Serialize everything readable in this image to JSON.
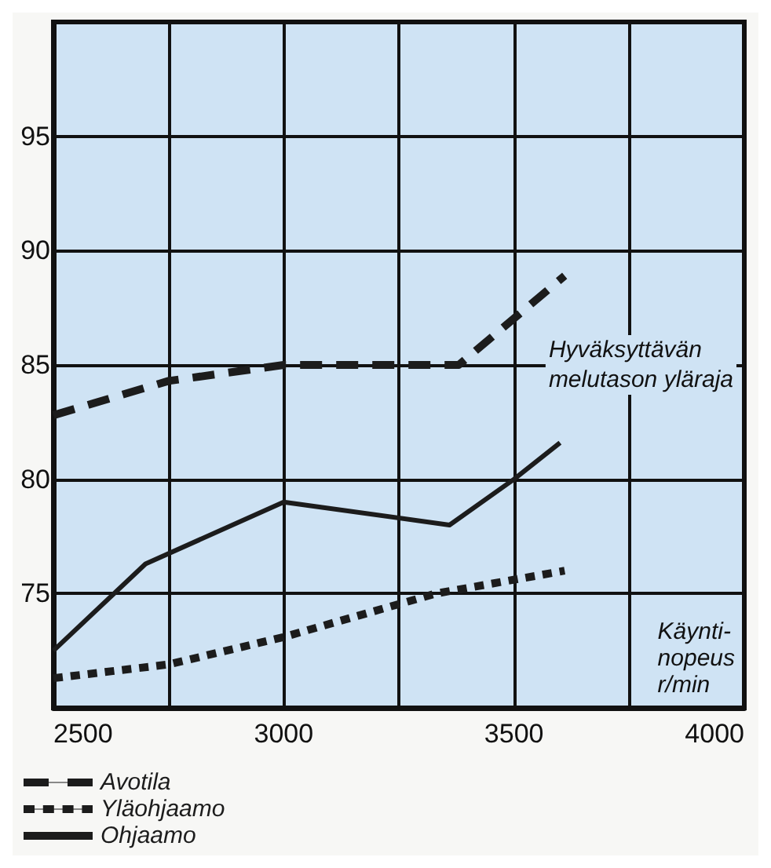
{
  "chart_data": {
    "type": "line",
    "xlabel": "Käynti-\nnopeus\nr/min",
    "xlim": [
      2500,
      4000
    ],
    "xticks": [
      2500,
      {
        "value": 2750,
        "label": null
      },
      3000,
      {
        "value": 3250,
        "label": null
      },
      3500,
      {
        "value": 3750,
        "label": null
      },
      4000
    ],
    "ylim": [
      70,
      100
    ],
    "yticks": [
      {
        "value": 70,
        "label": null
      },
      75,
      80,
      85,
      90,
      95,
      {
        "value": 100,
        "label": null
      }
    ],
    "series": [
      {
        "name": "Avotila",
        "color": "#1c1c1c",
        "line_style": "dashed",
        "x": [
          2500,
          2750,
          3000,
          3380,
          3610
        ],
        "values": [
          82.8,
          84.3,
          85.0,
          85.0,
          88.9
        ]
      },
      {
        "name": "Yläohjaamo",
        "color": "#1c1c1c",
        "line_style": "dotted",
        "x": [
          2500,
          2750,
          3000,
          3330,
          3610
        ],
        "values": [
          71.3,
          71.9,
          73.1,
          75.0,
          76.0
        ]
      },
      {
        "name": "Ohjaamo",
        "color": "#1c1c1c",
        "line_style": "solid",
        "x": [
          2500,
          2700,
          3000,
          3360,
          3500,
          3600
        ],
        "values": [
          72.5,
          76.3,
          79.0,
          78.0,
          80.0,
          81.6
        ]
      }
    ],
    "annotations": [
      "Hyväksyttävän\nmelutason yläraja"
    ],
    "grid": true,
    "legend": "bottom left",
    "marker": "none"
  }
}
